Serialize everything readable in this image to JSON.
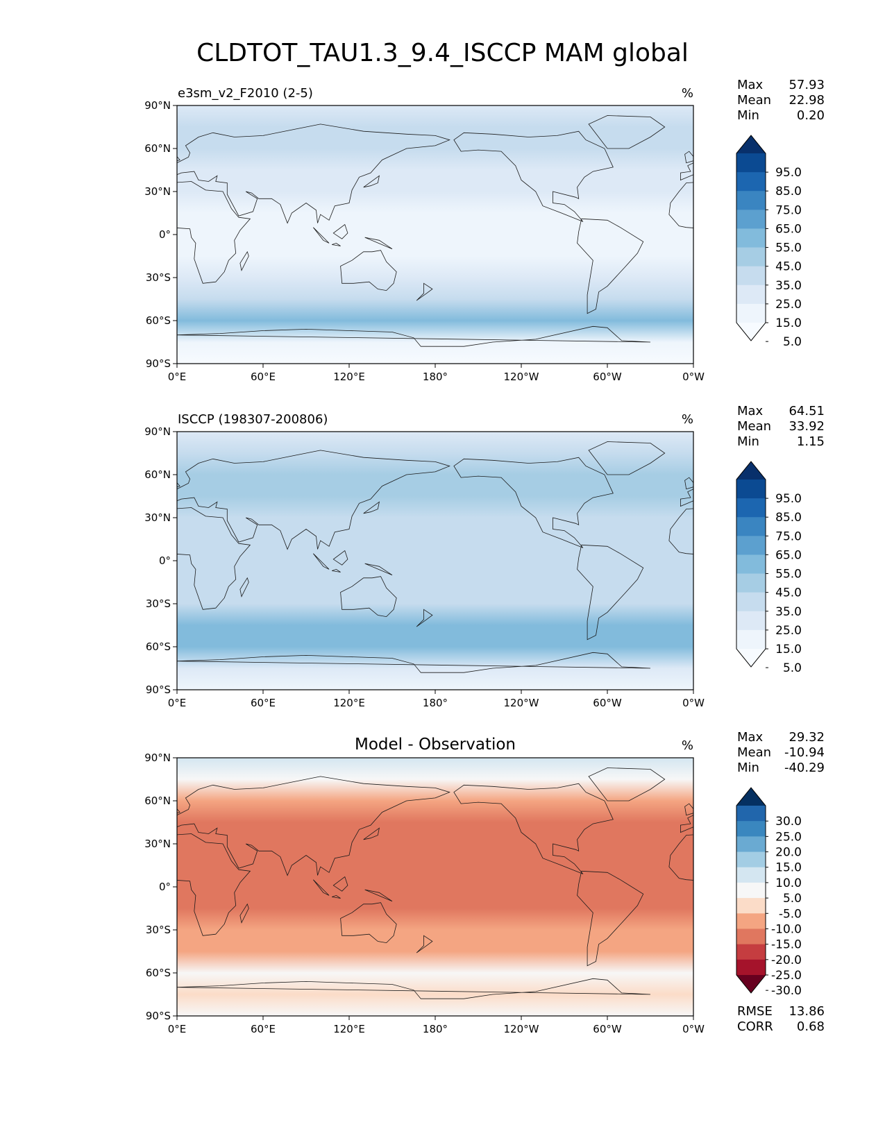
{
  "title": "CLDTOT_TAU1.3_9.4_ISCCP MAM global",
  "axes": {
    "lat_ticks": [
      "90°N",
      "60°N",
      "30°N",
      "0°",
      "30°S",
      "60°S",
      "90°S"
    ],
    "lon_ticks": [
      "0°E",
      "60°E",
      "120°E",
      "180°",
      "120°W",
      "60°W",
      "0°W"
    ]
  },
  "panels": [
    {
      "name": "test",
      "label_left": "e3sm_v2_F2010 (2-5)",
      "label_center": "",
      "units": "%",
      "stats": [
        [
          "Max",
          "57.93"
        ],
        [
          "Mean",
          "22.98"
        ],
        [
          "Min",
          "0.20"
        ]
      ],
      "colorbar": {
        "labels": [
          "95.0",
          "85.0",
          "75.0",
          "65.0",
          "55.0",
          "45.0",
          "35.0",
          "25.0",
          "15.0",
          "5.0"
        ],
        "colors": [
          "#08306b",
          "#0b4a92",
          "#1c66b0",
          "#3a85c1",
          "#5ca0cf",
          "#82bbdc",
          "#a6cde4",
          "#c6dcee",
          "#dde9f6",
          "#eef5fc",
          "#f7fbff"
        ]
      },
      "footer": []
    },
    {
      "name": "reference",
      "label_left": "ISCCP (198307-200806)",
      "label_center": "",
      "units": "%",
      "stats": [
        [
          "Max",
          "64.51"
        ],
        [
          "Mean",
          "33.92"
        ],
        [
          "Min",
          "1.15"
        ]
      ],
      "colorbar": {
        "labels": [
          "95.0",
          "85.0",
          "75.0",
          "65.0",
          "55.0",
          "45.0",
          "35.0",
          "25.0",
          "15.0",
          "5.0"
        ],
        "colors": [
          "#08306b",
          "#0b4a92",
          "#1c66b0",
          "#3a85c1",
          "#5ca0cf",
          "#82bbdc",
          "#a6cde4",
          "#c6dcee",
          "#dde9f6",
          "#eef5fc",
          "#f7fbff"
        ]
      },
      "footer": []
    },
    {
      "name": "difference",
      "label_left": "",
      "label_center": "Model - Observation",
      "units": "%",
      "stats": [
        [
          "Max",
          "29.32"
        ],
        [
          "Mean",
          "-10.94"
        ],
        [
          "Min",
          "-40.29"
        ]
      ],
      "colorbar": {
        "labels": [
          "30.0",
          "25.0",
          "20.0",
          "15.0",
          "10.0",
          "5.0",
          "-5.0",
          "-10.0",
          "-15.0",
          "-20.0",
          "-25.0",
          "-30.0"
        ],
        "colors": [
          "#053061",
          "#2166ac",
          "#3a87bf",
          "#6aaad2",
          "#a3cde4",
          "#d4e6f1",
          "#f7f7f7",
          "#fbdcc8",
          "#f4a582",
          "#e0775f",
          "#c53d40",
          "#a5132b",
          "#67001f"
        ]
      },
      "footer": [
        [
          "RMSE",
          "13.86"
        ],
        [
          "CORR",
          "0.68"
        ]
      ]
    }
  ],
  "chart_data": [
    {
      "type": "heatmap",
      "title": "e3sm_v2_F2010 (2-5)",
      "variable": "CLDTOT_TAU1.3_9.4_ISCCP",
      "season": "MAM",
      "units": "%",
      "xlabel": "longitude",
      "ylabel": "latitude",
      "xlim": [
        0,
        360
      ],
      "ylim": [
        -90,
        90
      ],
      "levels": [
        5,
        15,
        25,
        35,
        45,
        55,
        65,
        75,
        85,
        95
      ],
      "max": 57.93,
      "mean": 22.98,
      "min": 0.2,
      "zonal_profile": {
        "lat": [
          90,
          75,
          60,
          45,
          30,
          15,
          0,
          -15,
          -30,
          -45,
          -60,
          -75,
          -90
        ],
        "value": [
          22,
          25,
          27,
          24,
          16,
          13,
          12,
          14,
          22,
          30,
          45,
          12,
          3
        ]
      }
    },
    {
      "type": "heatmap",
      "title": "ISCCP (198307-200806)",
      "variable": "CLDTOT_TAU1.3_9.4_ISCCP",
      "season": "MAM",
      "units": "%",
      "xlabel": "longitude",
      "ylabel": "latitude",
      "xlim": [
        0,
        360
      ],
      "ylim": [
        -90,
        90
      ],
      "levels": [
        5,
        15,
        25,
        35,
        45,
        55,
        65,
        75,
        85,
        95
      ],
      "max": 64.51,
      "mean": 33.92,
      "min": 1.15,
      "zonal_profile": {
        "lat": [
          90,
          75,
          60,
          45,
          30,
          15,
          0,
          -15,
          -30,
          -45,
          -60,
          -75,
          -90
        ],
        "value": [
          18,
          32,
          38,
          40,
          32,
          30,
          33,
          32,
          34,
          45,
          48,
          22,
          6
        ]
      }
    },
    {
      "type": "heatmap",
      "title": "Model - Observation",
      "variable": "CLDTOT_TAU1.3_9.4_ISCCP",
      "season": "MAM",
      "units": "%",
      "xlabel": "longitude",
      "ylabel": "latitude",
      "xlim": [
        0,
        360
      ],
      "ylim": [
        -90,
        90
      ],
      "levels": [
        -30,
        -25,
        -20,
        -15,
        -10,
        -5,
        5,
        10,
        15,
        20,
        25,
        30
      ],
      "max": 29.32,
      "mean": -10.94,
      "min": -40.29,
      "rmse": 13.86,
      "corr": 0.68,
      "zonal_profile": {
        "lat": [
          90,
          75,
          60,
          45,
          30,
          15,
          0,
          -15,
          -30,
          -45,
          -60,
          -75,
          -90
        ],
        "value": [
          8,
          -4,
          -12,
          -17,
          -16,
          -17,
          -20,
          -18,
          -12,
          -14,
          -4,
          -8,
          -3
        ]
      }
    }
  ]
}
